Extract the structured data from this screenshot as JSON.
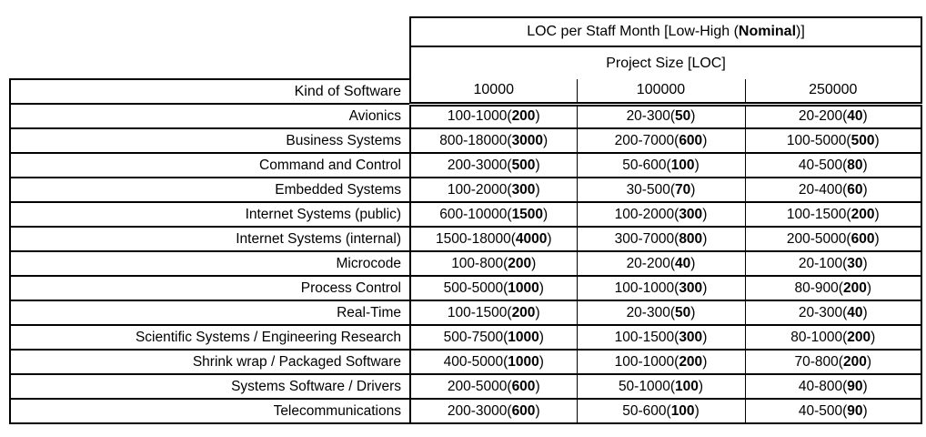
{
  "page": {
    "background": "#ffffff",
    "text_color": "#000000",
    "border_color": "#000000"
  },
  "table": {
    "title": {
      "pre": "LOC per Staff Month [Low-High (",
      "bold": "Nominal",
      "post": ")]"
    },
    "project_size_label": "Project Size [LOC]",
    "kind_header": "Kind of Software",
    "size_columns": [
      "10000",
      "100000",
      "250000"
    ],
    "format": {
      "open": "(",
      "close": ")"
    },
    "rows": [
      {
        "kind": "Avionics",
        "cells": [
          {
            "range": "100-1000",
            "nominal": "200"
          },
          {
            "range": "20-300",
            "nominal": "50"
          },
          {
            "range": "20-200",
            "nominal": "40"
          }
        ]
      },
      {
        "kind": "Business Systems",
        "cells": [
          {
            "range": "800-18000",
            "nominal": "3000"
          },
          {
            "range": "200-7000",
            "nominal": "600"
          },
          {
            "range": "100-5000",
            "nominal": "500"
          }
        ]
      },
      {
        "kind": "Command and Control",
        "cells": [
          {
            "range": "200-3000",
            "nominal": "500"
          },
          {
            "range": "50-600",
            "nominal": "100"
          },
          {
            "range": "40-500",
            "nominal": "80"
          }
        ]
      },
      {
        "kind": "Embedded Systems",
        "cells": [
          {
            "range": "100-2000",
            "nominal": "300"
          },
          {
            "range": "30-500",
            "nominal": "70"
          },
          {
            "range": "20-400",
            "nominal": "60"
          }
        ]
      },
      {
        "kind": "Internet Systems (public)",
        "cells": [
          {
            "range": "600-10000",
            "nominal": "1500"
          },
          {
            "range": "100-2000",
            "nominal": "300"
          },
          {
            "range": "100-1500",
            "nominal": "200"
          }
        ]
      },
      {
        "kind": "Internet Systems (internal)",
        "cells": [
          {
            "range": "1500-18000",
            "nominal": "4000"
          },
          {
            "range": "300-7000",
            "nominal": "800"
          },
          {
            "range": "200-5000",
            "nominal": "600"
          }
        ]
      },
      {
        "kind": "Microcode",
        "cells": [
          {
            "range": "100-800",
            "nominal": "200"
          },
          {
            "range": "20-200",
            "nominal": "40"
          },
          {
            "range": "20-100",
            "nominal": "30"
          }
        ]
      },
      {
        "kind": "Process Control",
        "cells": [
          {
            "range": "500-5000",
            "nominal": "1000"
          },
          {
            "range": "100-1000",
            "nominal": "300"
          },
          {
            "range": "80-900",
            "nominal": "200"
          }
        ]
      },
      {
        "kind": "Real-Time",
        "cells": [
          {
            "range": "100-1500",
            "nominal": "200"
          },
          {
            "range": "20-300",
            "nominal": "50"
          },
          {
            "range": "20-300",
            "nominal": "40"
          }
        ]
      },
      {
        "kind": "Scientific Systems / Engineering Research",
        "cells": [
          {
            "range": "500-7500",
            "nominal": "1000"
          },
          {
            "range": "100-1500",
            "nominal": "300"
          },
          {
            "range": "80-1000",
            "nominal": "200"
          }
        ]
      },
      {
        "kind": "Shrink wrap / Packaged Software",
        "cells": [
          {
            "range": "400-5000",
            "nominal": "1000"
          },
          {
            "range": "100-1000",
            "nominal": "200"
          },
          {
            "range": "70-800",
            "nominal": "200"
          }
        ]
      },
      {
        "kind": "Systems Software / Drivers",
        "cells": [
          {
            "range": "200-5000",
            "nominal": "600"
          },
          {
            "range": "50-1000",
            "nominal": "100"
          },
          {
            "range": "40-800",
            "nominal": "90"
          }
        ]
      },
      {
        "kind": "Telecommunications",
        "cells": [
          {
            "range": "200-3000",
            "nominal": "600"
          },
          {
            "range": "50-600",
            "nominal": "100"
          },
          {
            "range": "40-500",
            "nominal": "90"
          }
        ]
      }
    ]
  }
}
